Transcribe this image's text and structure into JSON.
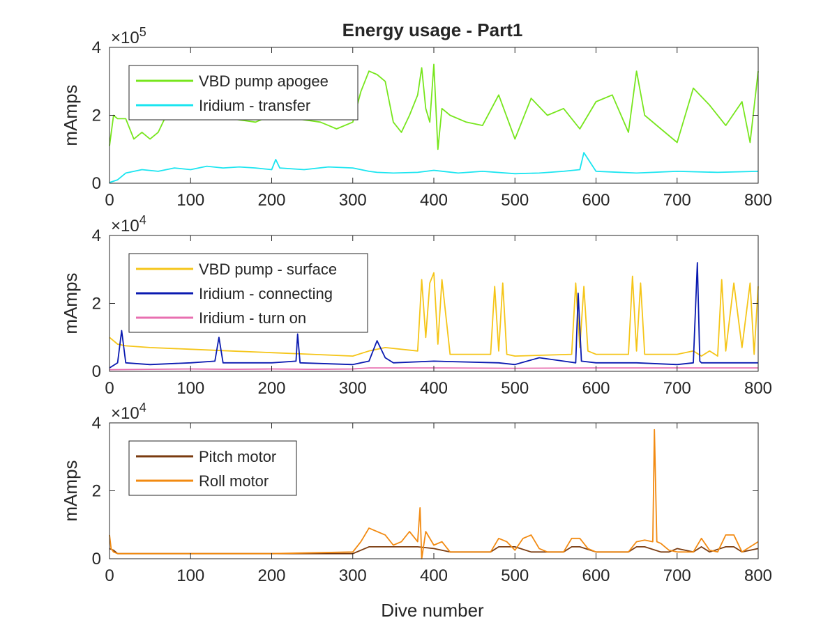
{
  "chart_data": {
    "title": "Energy usage - Part1",
    "xlabel": "Dive number",
    "panels": [
      {
        "type": "line",
        "ylabel": "mAmps",
        "exponent_label": "×10",
        "exponent_power": "5",
        "xlim": [
          0,
          800
        ],
        "ylim": [
          0,
          400000
        ],
        "x_ticks": [
          0,
          100,
          200,
          300,
          400,
          500,
          600,
          700,
          800
        ],
        "y_ticks": [
          0,
          200000,
          400000
        ],
        "y_tick_labels": [
          "0",
          "2",
          "4"
        ],
        "legend_position": "top-left",
        "series": [
          {
            "name": "VBD pump apogee",
            "color": "#77e61d",
            "x": [
              0,
              5,
              10,
              20,
              30,
              40,
              50,
              60,
              70,
              75,
              80,
              100,
              150,
              180,
              200,
              230,
              260,
              270,
              280,
              300,
              310,
              320,
              330,
              340,
              350,
              360,
              370,
              380,
              385,
              390,
              395,
              400,
              405,
              410,
              420,
              440,
              460,
              480,
              500,
              520,
              540,
              560,
              580,
              600,
              620,
              640,
              650,
              660,
              680,
              700,
              720,
              740,
              760,
              780,
              790,
              800
            ],
            "y": [
              110000,
              200000,
              190000,
              190000,
              130000,
              150000,
              130000,
              150000,
              200000,
              210000,
              200000,
              200000,
              190000,
              180000,
              200000,
              190000,
              180000,
              170000,
              160000,
              180000,
              270000,
              330000,
              320000,
              300000,
              180000,
              150000,
              200000,
              260000,
              340000,
              220000,
              180000,
              350000,
              100000,
              220000,
              200000,
              180000,
              170000,
              260000,
              130000,
              250000,
              200000,
              220000,
              160000,
              240000,
              260000,
              150000,
              330000,
              200000,
              160000,
              120000,
              280000,
              230000,
              170000,
              240000,
              120000,
              330000
            ]
          },
          {
            "name": "Iridium - transfer",
            "color": "#1ae5f0",
            "x": [
              0,
              10,
              20,
              40,
              60,
              80,
              100,
              120,
              140,
              160,
              180,
              200,
              205,
              210,
              240,
              270,
              300,
              320,
              330,
              350,
              380,
              400,
              430,
              460,
              500,
              530,
              560,
              580,
              585,
              600,
              650,
              700,
              750,
              800
            ],
            "y": [
              2000,
              10000,
              30000,
              40000,
              35000,
              45000,
              40000,
              50000,
              45000,
              48000,
              45000,
              40000,
              70000,
              45000,
              40000,
              48000,
              45000,
              35000,
              32000,
              30000,
              32000,
              38000,
              30000,
              35000,
              28000,
              30000,
              35000,
              40000,
              90000,
              35000,
              30000,
              35000,
              32000,
              35000
            ]
          }
        ]
      },
      {
        "type": "line",
        "ylabel": "mAmps",
        "exponent_label": "×10",
        "exponent_power": "4",
        "xlim": [
          0,
          800
        ],
        "ylim": [
          0,
          40000
        ],
        "x_ticks": [
          0,
          100,
          200,
          300,
          400,
          500,
          600,
          700,
          800
        ],
        "y_ticks": [
          0,
          20000,
          40000
        ],
        "y_tick_labels": [
          "0",
          "2",
          "4"
        ],
        "legend_position": "top-left",
        "series": [
          {
            "name": "VBD pump - surface",
            "color": "#f5c518",
            "x": [
              0,
              10,
              20,
              50,
              100,
              150,
              200,
              250,
              300,
              320,
              340,
              380,
              385,
              390,
              395,
              400,
              405,
              410,
              420,
              470,
              475,
              480,
              485,
              490,
              500,
              570,
              575,
              580,
              585,
              590,
              600,
              640,
              645,
              650,
              655,
              660,
              700,
              720,
              730,
              740,
              750,
              755,
              760,
              770,
              780,
              790,
              795,
              800
            ],
            "y": [
              10000,
              8000,
              7500,
              7000,
              6500,
              6000,
              5500,
              5000,
              4500,
              6000,
              7000,
              6000,
              27000,
              10000,
              26000,
              29000,
              8000,
              27000,
              5000,
              5000,
              25000,
              6000,
              26000,
              5000,
              4500,
              5000,
              26000,
              7000,
              25000,
              6000,
              5000,
              5000,
              28000,
              6000,
              26000,
              5000,
              5000,
              6000,
              4500,
              6000,
              4500,
              27000,
              6000,
              26000,
              7000,
              26000,
              5000,
              25000
            ]
          },
          {
            "name": "Iridium - connecting",
            "color": "#0a1ab0",
            "x": [
              0,
              10,
              15,
              20,
              50,
              100,
              130,
              135,
              140,
              200,
              230,
              232,
              235,
              300,
              320,
              330,
              340,
              350,
              400,
              480,
              500,
              530,
              560,
              575,
              578,
              582,
              600,
              650,
              700,
              720,
              725,
              728,
              730,
              760,
              800
            ],
            "y": [
              1000,
              2500,
              12000,
              2500,
              2000,
              2500,
              3000,
              10000,
              2500,
              2500,
              3000,
              11000,
              2500,
              2000,
              3000,
              9000,
              4000,
              2500,
              3000,
              2500,
              2000,
              4000,
              3000,
              2500,
              23000,
              3000,
              2500,
              2500,
              2000,
              2500,
              32000,
              3000,
              2500,
              2500,
              2500
            ]
          },
          {
            "name": "Iridium - turn on",
            "color": "#e86fb0",
            "x": [
              0,
              50,
              100,
              150,
              200,
              250,
              300,
              320,
              400,
              500,
              600,
              700,
              800
            ],
            "y": [
              500,
              600,
              700,
              600,
              700,
              600,
              700,
              1000,
              1000,
              900,
              1000,
              1000,
              1000
            ]
          }
        ]
      },
      {
        "type": "line",
        "ylabel": "mAmps",
        "exponent_label": "×10",
        "exponent_power": "4",
        "xlim": [
          0,
          800
        ],
        "ylim": [
          0,
          40000
        ],
        "x_ticks": [
          0,
          100,
          200,
          300,
          400,
          500,
          600,
          700,
          800
        ],
        "y_ticks": [
          0,
          20000,
          40000
        ],
        "y_tick_labels": [
          "0",
          "2",
          "4"
        ],
        "legend_position": "top-left",
        "series": [
          {
            "name": "Pitch motor",
            "color": "#7a3b0f",
            "x": [
              0,
              5,
              10,
              100,
              200,
              300,
              310,
              320,
              380,
              400,
              420,
              470,
              480,
              500,
              520,
              560,
              570,
              580,
              600,
              640,
              650,
              660,
              680,
              690,
              700,
              720,
              730,
              740,
              760,
              770,
              780,
              800
            ],
            "y": [
              3000,
              2500,
              1500,
              1500,
              1500,
              1500,
              2500,
              3500,
              3500,
              3000,
              2000,
              2000,
              3500,
              3500,
              2000,
              2000,
              3500,
              3500,
              2000,
              2000,
              3500,
              3500,
              2000,
              2000,
              3000,
              2000,
              3500,
              2000,
              3500,
              3500,
              2000,
              3000
            ]
          },
          {
            "name": "Roll motor",
            "color": "#f28a11",
            "x": [
              0,
              2,
              5,
              10,
              50,
              100,
              200,
              300,
              310,
              320,
              340,
              350,
              360,
              370,
              380,
              383,
              385,
              390,
              400,
              410,
              420,
              470,
              480,
              490,
              500,
              510,
              520,
              530,
              540,
              560,
              570,
              580,
              590,
              600,
              640,
              650,
              660,
              670,
              672,
              675,
              680,
              690,
              700,
              720,
              730,
              740,
              750,
              760,
              770,
              780,
              800
            ],
            "y": [
              7000,
              3000,
              2000,
              1500,
              1500,
              1500,
              1500,
              2000,
              5000,
              9000,
              7000,
              4000,
              5000,
              8000,
              5000,
              15000,
              0,
              8000,
              4000,
              5000,
              2000,
              2000,
              6000,
              5000,
              2500,
              6000,
              7000,
              3000,
              2000,
              2000,
              6000,
              6000,
              3000,
              2000,
              2000,
              5000,
              5500,
              5000,
              38000,
              5000,
              4500,
              2500,
              2000,
              2000,
              6000,
              2500,
              2000,
              7000,
              7000,
              2000,
              5000
            ]
          }
        ]
      }
    ]
  }
}
